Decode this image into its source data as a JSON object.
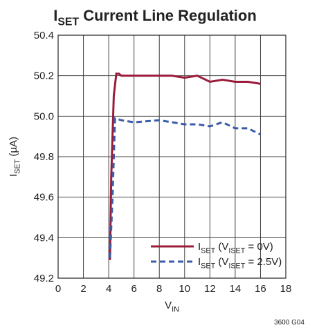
{
  "chart_data": {
    "type": "line",
    "title": [
      "I",
      "SET",
      " Current Line Regulation"
    ],
    "xlabel": [
      "V",
      "IN"
    ],
    "ylabel": [
      "I",
      "SET",
      " (µA)"
    ],
    "note": "3600 G04",
    "xlim": [
      0,
      18
    ],
    "ylim": [
      49.2,
      50.4
    ],
    "xticks": [
      0,
      2,
      4,
      6,
      8,
      10,
      12,
      14,
      16,
      18
    ],
    "yticks": [
      49.2,
      49.4,
      49.6,
      49.8,
      {
        "value": 50,
        "label": "50.0"
      },
      50.2,
      50.4
    ],
    "grid": true,
    "legend": "lower right",
    "series": [
      {
        "name": [
          "I",
          "SET",
          " (V",
          "ISET",
          " = 0V)"
        ],
        "color": "#9b1b3b",
        "dash": false,
        "x": [
          4.1,
          4.2,
          4.4,
          4.6,
          4.8,
          5,
          6,
          7,
          8,
          9,
          10,
          11,
          12,
          13,
          14,
          15,
          16
        ],
        "values": [
          49.29,
          49.7,
          50.1,
          50.21,
          50.21,
          50.2,
          50.2,
          50.2,
          50.2,
          50.2,
          50.19,
          50.2,
          50.17,
          50.18,
          50.17,
          50.17,
          50.16
        ]
      },
      {
        "name": [
          "I",
          "SET",
          " (V",
          "ISET",
          " = 2.5V)"
        ],
        "color": "#3a5ba8",
        "dash": true,
        "x": [
          4.1,
          4.3,
          4.5,
          5,
          6,
          7,
          8,
          9,
          10,
          11,
          12,
          13,
          14,
          15,
          16
        ],
        "values": [
          49.3,
          49.6,
          49.99,
          49.98,
          49.97,
          49.975,
          49.98,
          49.97,
          49.96,
          49.96,
          49.95,
          49.97,
          49.94,
          49.94,
          49.91
        ]
      }
    ]
  }
}
